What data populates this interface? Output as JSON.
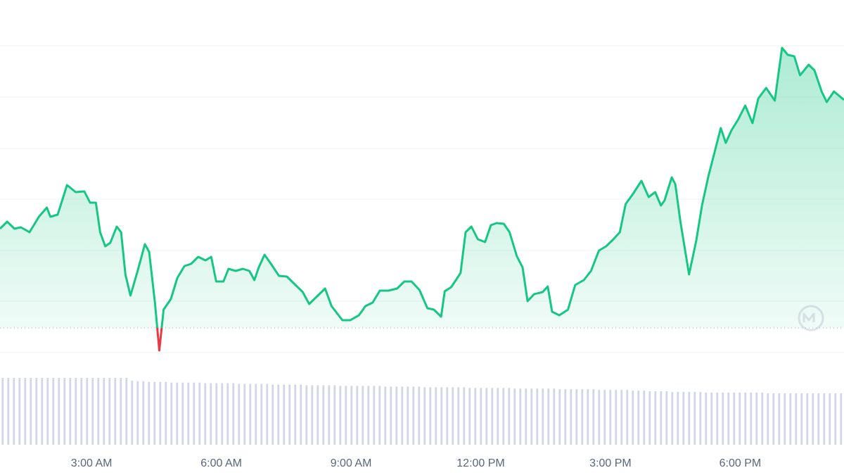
{
  "chart_data": {
    "type": "line",
    "x": [
      53,
      63,
      73,
      82,
      94,
      107,
      118,
      123,
      133,
      146,
      158,
      170,
      178,
      186,
      192,
      199,
      206,
      215,
      221,
      227,
      234,
      244,
      254,
      260,
      268,
      274,
      280,
      290,
      299,
      309,
      318,
      328,
      338,
      346,
      353,
      363,
      370,
      380,
      390,
      399,
      406,
      412,
      420,
      429,
      440,
      451,
      461,
      473,
      482,
      494,
      504,
      513,
      528,
      539,
      551,
      560,
      570,
      580,
      592,
      604,
      614,
      624,
      635,
      646,
      655,
      665,
      670,
      679,
      692,
      699,
      707,
      716,
      726,
      734,
      742,
      752,
      760,
      770,
      778,
      785,
      794,
      806,
      813,
      819,
      829,
      841,
      851,
      863,
      873,
      884,
      894,
      904,
      913,
      921,
      931,
      943,
      953,
      962,
      970,
      975,
      985,
      990,
      997,
      1009,
      1019,
      1027,
      1036,
      1046,
      1053,
      1060,
      1068,
      1077,
      1087,
      1097,
      1105,
      1116,
      1128,
      1138,
      1146,
      1155,
      1163,
      1175,
      1183,
      1193,
      1200,
      1210,
      1224
    ],
    "values": [
      176,
      186,
      176,
      178,
      171,
      193,
      206,
      193,
      196,
      238,
      228,
      229,
      213,
      213,
      171,
      151,
      156,
      179,
      171,
      111,
      81,
      116,
      154,
      143,
      71,
      3,
      61,
      76,
      106,
      123,
      126,
      136,
      131,
      136,
      101,
      101,
      119,
      116,
      119,
      116,
      103,
      121,
      139,
      126,
      109,
      108,
      98,
      86,
      69,
      81,
      91,
      66,
      46,
      46,
      53,
      66,
      71,
      88,
      88,
      91,
      101,
      101,
      89,
      63,
      61,
      51,
      87,
      93,
      113,
      171,
      179,
      161,
      157,
      181,
      184,
      183,
      171,
      137,
      121,
      73,
      83,
      86,
      94,
      58,
      53,
      61,
      96,
      103,
      116,
      145,
      151,
      161,
      171,
      211,
      225,
      244,
      221,
      228,
      209,
      216,
      249,
      239,
      186,
      111,
      159,
      209,
      251,
      291,
      319,
      298,
      316,
      331,
      351,
      326,
      361,
      376,
      358,
      433,
      423,
      421,
      394,
      409,
      401,
      371,
      356,
      371,
      359
    ],
    "baseline": 35,
    "up_color": "#16c784",
    "down_color": "#ea3943",
    "xlim": [
      53,
      1224
    ],
    "ylim": [
      0,
      436
    ],
    "yticks": [
      0,
      73,
      145,
      218,
      290,
      363,
      436
    ],
    "xticks": [
      {
        "value": 180,
        "label": "3:00 AM"
      },
      {
        "value": 360,
        "label": "6:00 AM"
      },
      {
        "value": 540,
        "label": "9:00 AM"
      },
      {
        "value": 720,
        "label": "12:00 PM"
      },
      {
        "value": 900,
        "label": "3:00 PM"
      },
      {
        "value": 1080,
        "label": "6:00 PM"
      }
    ],
    "grid": true,
    "volume": {
      "color": "#cfd6e4",
      "vlim": [
        0,
        100
      ],
      "values": [
        100,
        100,
        100,
        100,
        100,
        100,
        100,
        100,
        100,
        100,
        100,
        100,
        100,
        100,
        100,
        100,
        100,
        100,
        100,
        100,
        100,
        100,
        100,
        96,
        95,
        95,
        94,
        94,
        94,
        94,
        93,
        93,
        93,
        93,
        93,
        93,
        92,
        92,
        92,
        92,
        92,
        92,
        91,
        91,
        91,
        91,
        91,
        91,
        90,
        90,
        90,
        90,
        90,
        90,
        89,
        89,
        89,
        89,
        89,
        89,
        88,
        88,
        88,
        88,
        88,
        88,
        88,
        88,
        87,
        87,
        87,
        87,
        87,
        87,
        87,
        86,
        86,
        86,
        86,
        86,
        86,
        86,
        86,
        85,
        85,
        85,
        85,
        85,
        85,
        85,
        85,
        84,
        84,
        84,
        84,
        84,
        84,
        84,
        84,
        83,
        83,
        83,
        83,
        83,
        83,
        83,
        82,
        82,
        82,
        82,
        82,
        82,
        81,
        81,
        81,
        80,
        80,
        80,
        80,
        79,
        79,
        79,
        79,
        79,
        79,
        78,
        78,
        78,
        78,
        78,
        78,
        78,
        78,
        78,
        78,
        78,
        77,
        77,
        77,
        77,
        77,
        77,
        77,
        77,
        77,
        77,
        77,
        77,
        77,
        77
      ]
    }
  }
}
